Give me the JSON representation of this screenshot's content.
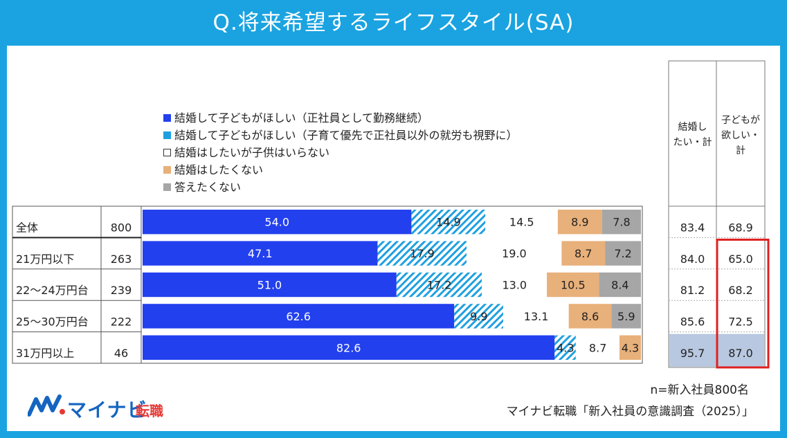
{
  "title": "Q.将来希望するライフスタイル(SA)",
  "legend": [
    {
      "label": "結婚して子どもがほしい（正社員として勤務継続）",
      "color": "#2340ee",
      "style": "solid"
    },
    {
      "label": "結婚して子どもがほしい（子育て優先で正社員以外の就労も視野に）",
      "color": "#1ea0e0",
      "style": "solid"
    },
    {
      "label": "結婚はしたいが子供はいらない",
      "color": "#ffffff",
      "style": "outline"
    },
    {
      "label": "結婚はしたくない",
      "color": "#e8b07a",
      "style": "solid"
    },
    {
      "label": "答えたくない",
      "color": "#a6a6a6",
      "style": "solid"
    }
  ],
  "summary_headers": [
    "結婚し たい・計",
    "子どもが 欲しい・ 計"
  ],
  "chart_data": {
    "type": "bar",
    "orientation": "horizontal-stacked-100",
    "categories": [
      "全体",
      "21万円以下",
      "22～24万円台",
      "25～30万円台",
      "31万円以上"
    ],
    "n": [
      800,
      263,
      239,
      222,
      46
    ],
    "series": [
      {
        "name": "結婚して子どもがほしい（正社員として勤務継続）",
        "color": "#2340ee",
        "pattern": "solid",
        "label_color": "#ffffff",
        "values": [
          54.0,
          47.1,
          51.0,
          62.6,
          82.6
        ]
      },
      {
        "name": "結婚して子どもがほしい（子育て優先で正社員以外の就労も視野に）",
        "color": "#1ea0e0",
        "pattern": "hatch",
        "label_color": "#222222",
        "values": [
          14.9,
          17.9,
          17.2,
          9.9,
          4.3
        ]
      },
      {
        "name": "結婚はしたいが子供はいらない",
        "color": "#ffffff",
        "pattern": "solid",
        "label_color": "#222222",
        "values": [
          14.5,
          19.0,
          13.0,
          13.1,
          8.7
        ]
      },
      {
        "name": "結婚はしたくない",
        "color": "#e8b07a",
        "pattern": "solid",
        "label_color": "#222222",
        "values": [
          8.9,
          8.7,
          10.5,
          8.6,
          4.3
        ]
      },
      {
        "name": "答えたくない",
        "color": "#a6a6a6",
        "pattern": "solid",
        "label_color": "#222222",
        "values": [
          7.8,
          7.2,
          8.4,
          5.9,
          0
        ]
      }
    ],
    "summary": {
      "marry_total": [
        83.4,
        84.0,
        81.2,
        85.6,
        95.7
      ],
      "children_total": [
        68.9,
        65.0,
        68.2,
        72.5,
        87.0
      ]
    },
    "highlight_color": "#e02020",
    "highlighted_cell_fill": "#b8c8e0"
  },
  "notes": {
    "n": "n=新入社員800名",
    "source": "マイナビ転職「新入社員の意識調査（2025）」"
  },
  "logo": {
    "name": "マイナビ",
    "sub": "転職"
  }
}
